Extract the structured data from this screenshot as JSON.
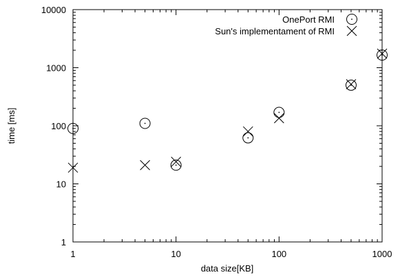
{
  "chart_data": {
    "type": "scatter",
    "xlabel": "data size[KB]",
    "ylabel": "time [ms]",
    "x_scale": "log",
    "y_scale": "log",
    "xlim": [
      1,
      1000
    ],
    "ylim": [
      1,
      10000
    ],
    "x_ticks": [
      "1",
      "10",
      "100",
      "1000"
    ],
    "y_ticks": [
      "1",
      "10",
      "100",
      "1000",
      "10000"
    ],
    "grid": false,
    "legend_position": "top-right",
    "series": [
      {
        "name": "OnePort RMI",
        "marker": "circle-dot",
        "points": [
          {
            "x": 1,
            "y": 90
          },
          {
            "x": 5,
            "y": 110
          },
          {
            "x": 10,
            "y": 21
          },
          {
            "x": 50,
            "y": 62
          },
          {
            "x": 100,
            "y": 170
          },
          {
            "x": 500,
            "y": 500
          },
          {
            "x": 1000,
            "y": 1650
          }
        ]
      },
      {
        "name": "Sun's implementament of RMI",
        "marker": "x",
        "points": [
          {
            "x": 1,
            "y": 19
          },
          {
            "x": 5,
            "y": 21
          },
          {
            "x": 10,
            "y": 24
          },
          {
            "x": 50,
            "y": 80
          },
          {
            "x": 100,
            "y": 135
          },
          {
            "x": 500,
            "y": 520
          },
          {
            "x": 1000,
            "y": 1750
          }
        ]
      }
    ]
  }
}
